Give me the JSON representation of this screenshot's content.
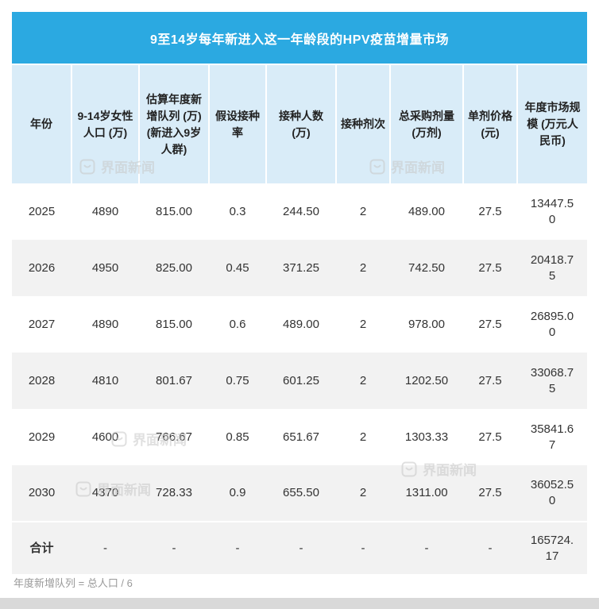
{
  "title": "9至14岁每年新进入这一年龄段的HPV疫苗增量市场",
  "watermark": {
    "text": "界面新闻"
  },
  "footer": {
    "note": "年度新增队列 = 总人口 / 6"
  },
  "colors": {
    "header_bg": "#2BA9E1",
    "subheader_bg": "#D9ECF8",
    "row_alt_bg": "#F2F2F2",
    "text_color": "#333333",
    "footnote_color": "#999999",
    "strip_bg": "#D9D9D9"
  },
  "chart_data": {
    "type": "table",
    "title": "9至14岁每年新进入这一年龄段的HPV疫苗增量市场",
    "columns": [
      "年份",
      "9-14岁女性人口 (万)",
      "估算年度新增队列 (万) (新进入9岁人群)",
      "假设接种率",
      "接种人数 (万)",
      "接种剂次",
      "总采购剂量 (万剂)",
      "单剂价格 (元)",
      "年度市场规模 (万元人民币)"
    ],
    "rows": [
      [
        "2025",
        "4890",
        "815.00",
        "0.3",
        "244.50",
        "2",
        "489.00",
        "27.5",
        "13447.50"
      ],
      [
        "2026",
        "4950",
        "825.00",
        "0.45",
        "371.25",
        "2",
        "742.50",
        "27.5",
        "20418.75"
      ],
      [
        "2027",
        "4890",
        "815.00",
        "0.6",
        "489.00",
        "2",
        "978.00",
        "27.5",
        "26895.00"
      ],
      [
        "2028",
        "4810",
        "801.67",
        "0.75",
        "601.25",
        "2",
        "1202.50",
        "27.5",
        "33068.75"
      ],
      [
        "2029",
        "4600",
        "766.67",
        "0.85",
        "651.67",
        "2",
        "1303.33",
        "27.5",
        "35841.67"
      ],
      [
        "2030",
        "4370",
        "728.33",
        "0.9",
        "655.50",
        "2",
        "1311.00",
        "27.5",
        "36052.50"
      ],
      [
        "合计",
        "-",
        "-",
        "-",
        "-",
        "-",
        "-",
        "-",
        "165724.17"
      ]
    ],
    "footnote": "年度新增队列 = 总人口 / 6"
  }
}
